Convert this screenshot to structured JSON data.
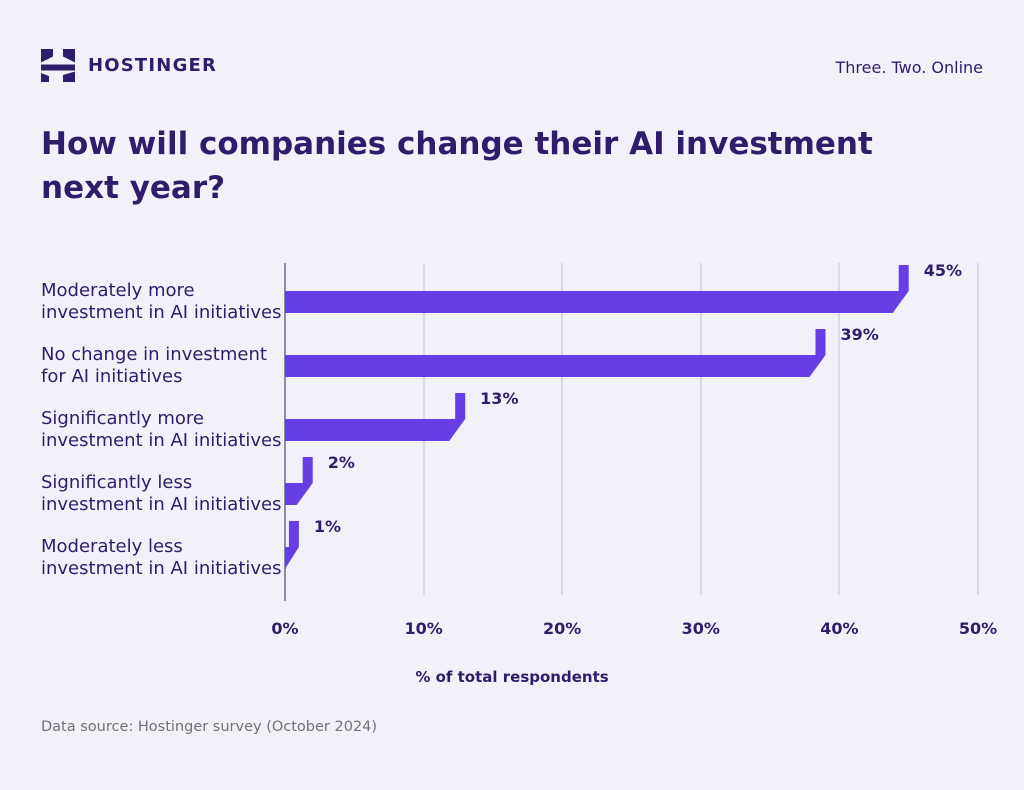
{
  "header": {
    "brand": "HOSTINGER",
    "tagline": "Three. Two. Online"
  },
  "title": "How will companies change their AI investment\nnext year?",
  "chart_data": {
    "type": "bar",
    "orientation": "horizontal",
    "title": "How will companies change their AI investment next year?",
    "categories": [
      "Moderately more\ninvestment in AI initiatives",
      "No change in investment\nfor AI initiatives",
      "Significantly more\ninvestment in AI initiatives",
      "Significantly less\ninvestment in AI initiatives",
      "Moderately less\ninvestment in AI initiatives"
    ],
    "values": [
      45,
      39,
      13,
      2,
      1
    ],
    "value_labels": [
      "45%",
      "39%",
      "13%",
      "2%",
      "1%"
    ],
    "xlabel": "% of total respondents",
    "xlim": [
      0,
      50
    ],
    "x_ticks": [
      "0%",
      "10%",
      "20%",
      "30%",
      "40%",
      "50%"
    ],
    "grid": "vertical-only",
    "legend": "none",
    "bar_color": "#673DE6"
  },
  "footer": {
    "source": "Data source: Hostinger survey (October 2024)"
  },
  "colors": {
    "background": "#F2F1FA",
    "text_dark": "#2F1C6A",
    "bar": "#673DE6",
    "gridline": "#DBD7EF",
    "axis_line": "#8D89A8",
    "source_text": "#6D7081"
  }
}
